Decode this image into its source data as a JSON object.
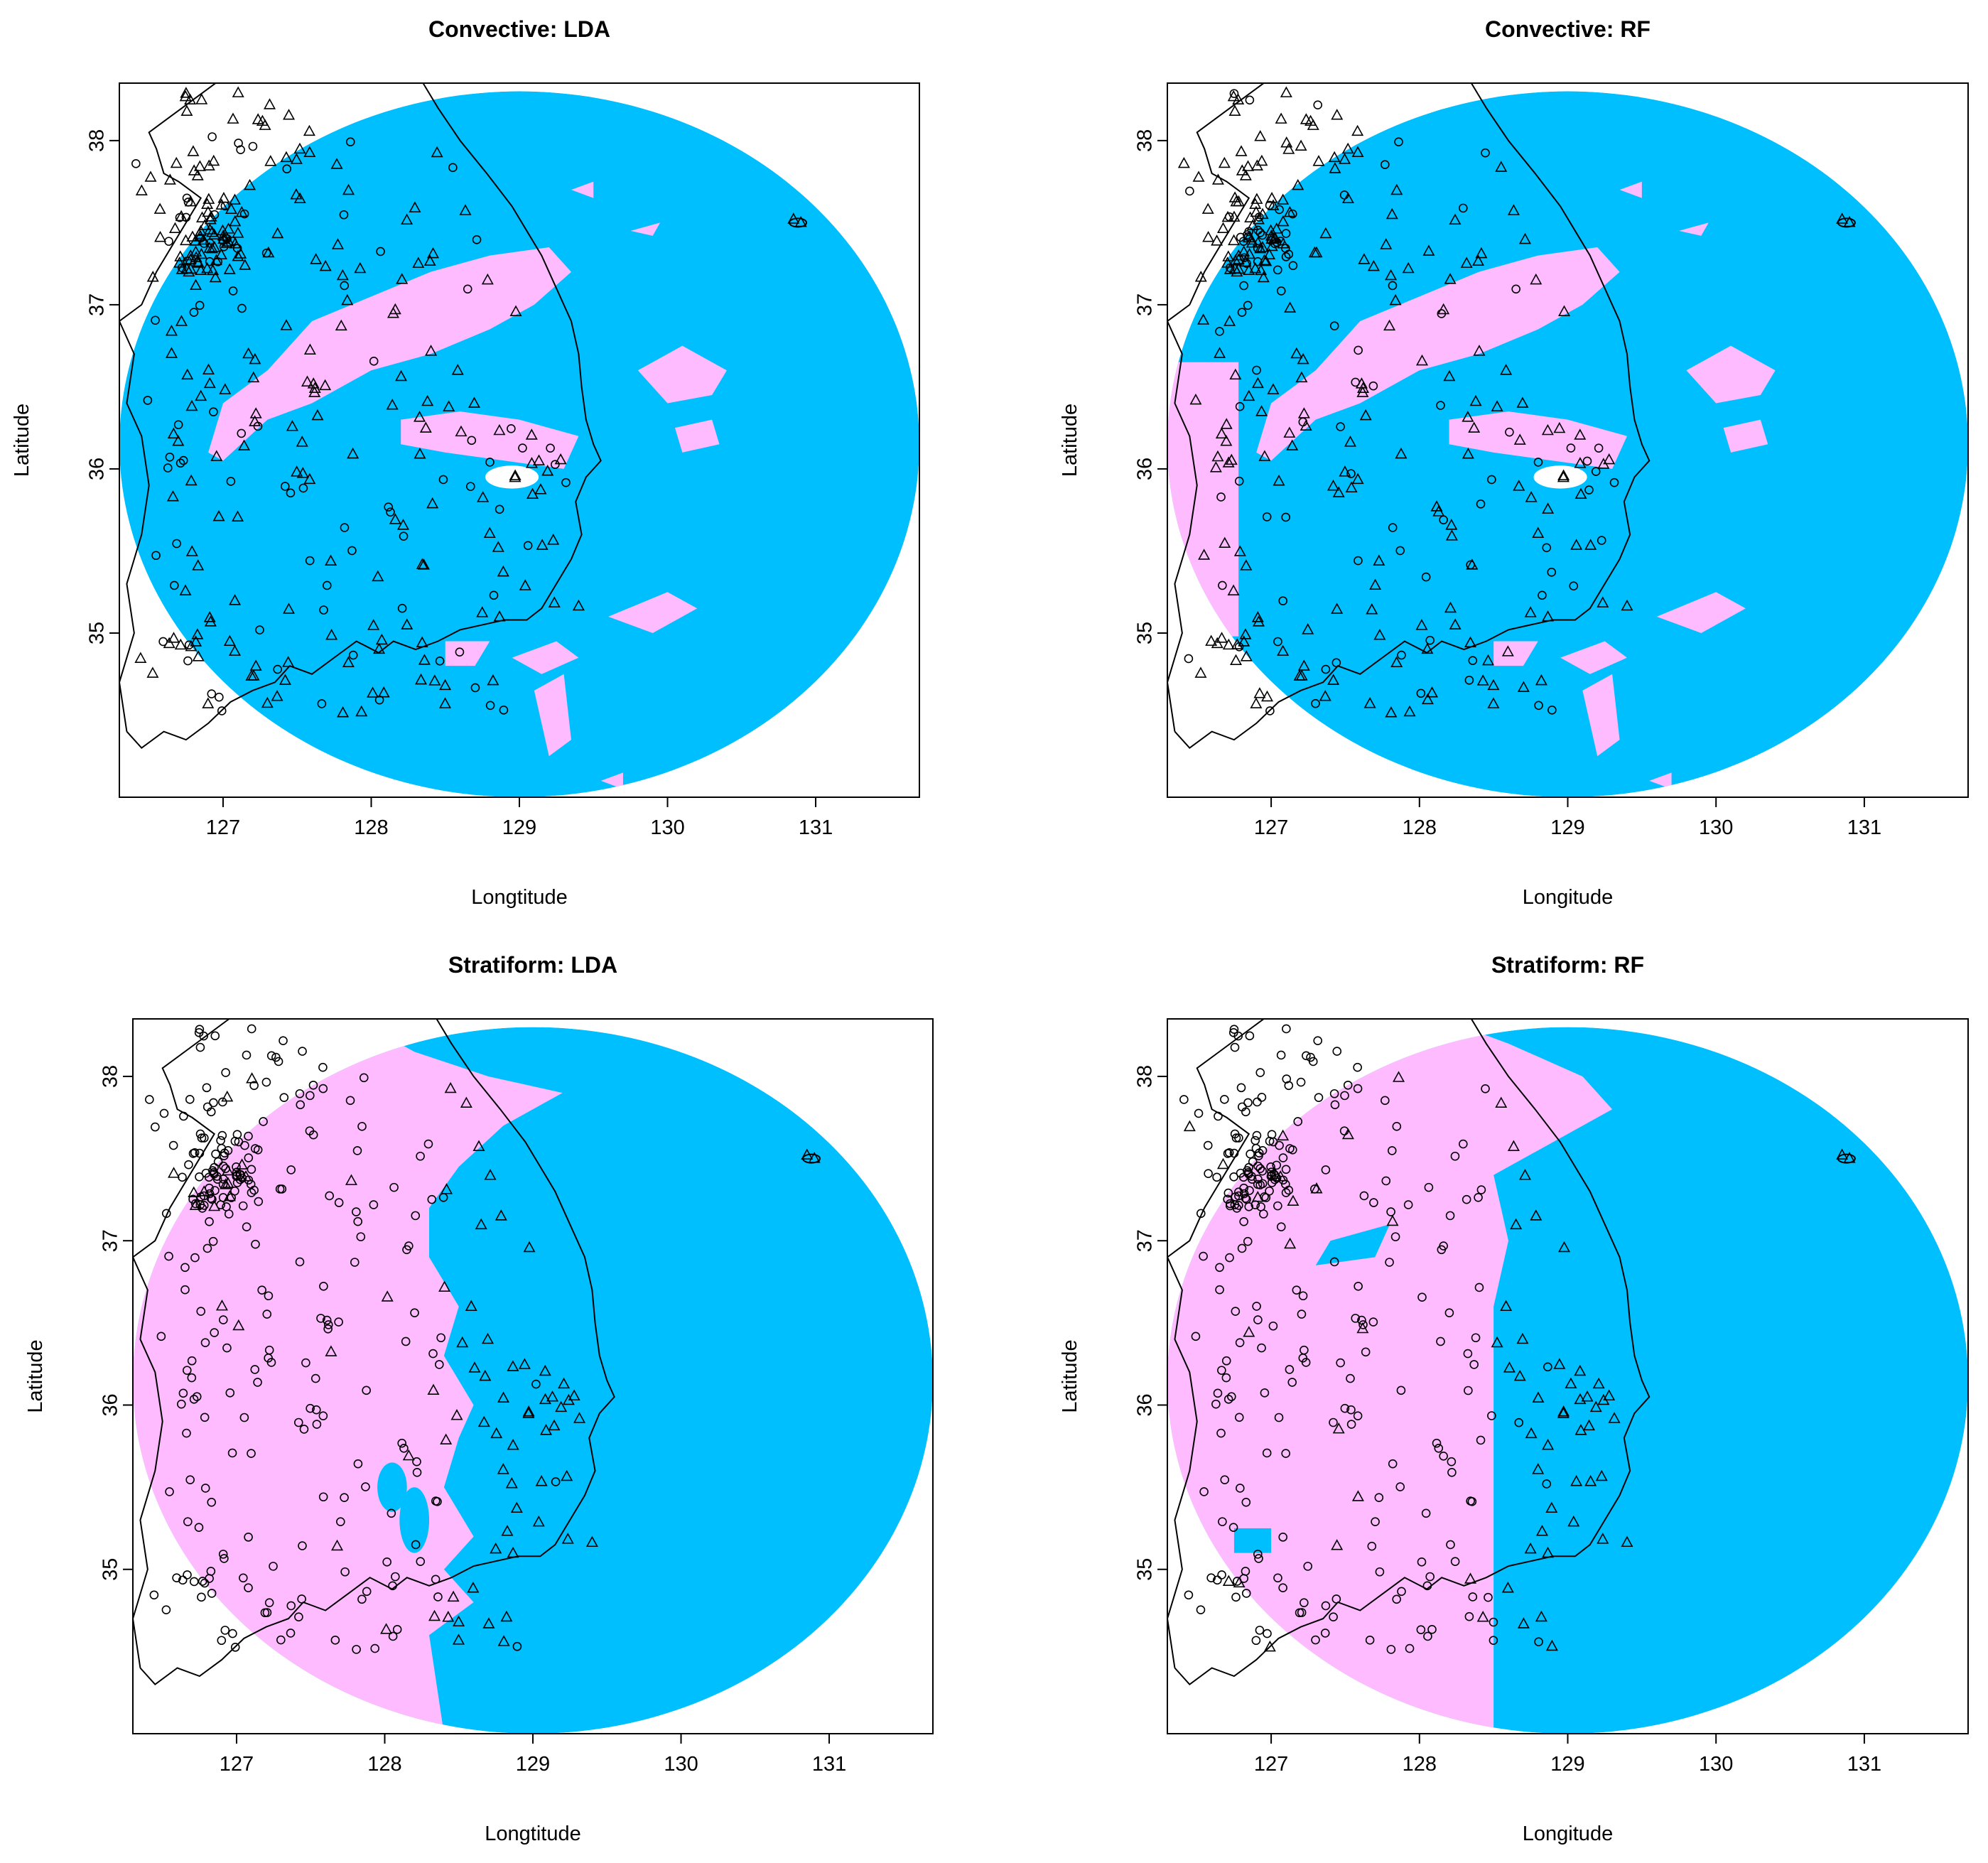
{
  "colors": {
    "pink": "#FFBBFF",
    "blue": "#00BFFF",
    "line": "#000000",
    "background": "#FFFFFF"
  },
  "panels": [
    {
      "title": "Convective: LDA",
      "xlabel": "Longtitude",
      "ylabel": "Latitude",
      "variant": "conv-lda"
    },
    {
      "title": "Convective: RF",
      "xlabel": "Longitude",
      "ylabel": "Latitude",
      "variant": "conv-rf"
    },
    {
      "title": "Stratiform: LDA",
      "xlabel": "Longtitude",
      "ylabel": "Latitude",
      "variant": "strat-lda"
    },
    {
      "title": "Stratiform: RF",
      "xlabel": "Longitude",
      "ylabel": "Latitude",
      "variant": "strat-rf"
    }
  ],
  "x_ticks": [
    "127",
    "128",
    "129",
    "130",
    "131"
  ],
  "y_ticks": [
    "35",
    "36",
    "37",
    "38"
  ],
  "x_tick_values": [
    127,
    128,
    129,
    130,
    131
  ],
  "y_tick_values": [
    35,
    36,
    37,
    38
  ],
  "xlim": [
    126.3,
    131.7
  ],
  "ylim": [
    34.0,
    38.35
  ],
  "radar_center": [
    129.0,
    36.15
  ],
  "radar_radius_lon": 2.7,
  "radar_radius_lat": 2.15,
  "legend_note": "",
  "markers": {
    "circle": "circle-marker",
    "triangle": "triangle-marker"
  }
}
